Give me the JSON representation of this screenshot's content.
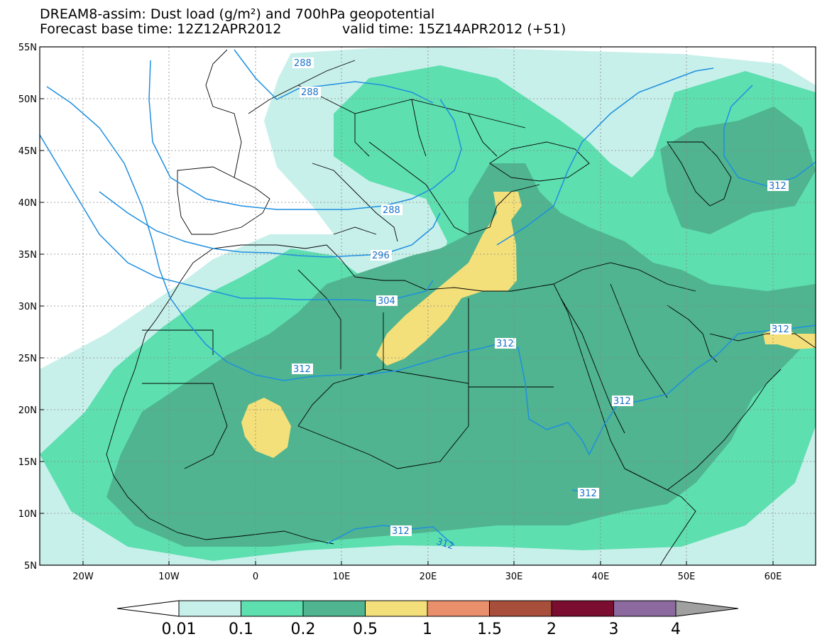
{
  "title": {
    "line1": "DREAM8-assim: Dust load (g/m²) and 700hPa geopotential",
    "line2_base": "Forecast base time: 12Z12APR2012",
    "line2_valid": "valid time: 15Z14APR2012 (+51)"
  },
  "axes": {
    "lat_labels": [
      "55N",
      "50N",
      "45N",
      "40N",
      "35N",
      "30N",
      "25N",
      "20N",
      "15N",
      "10N",
      "5N"
    ],
    "lon_labels": [
      "20W",
      "10W",
      "0",
      "10E",
      "20E",
      "30E",
      "40E",
      "50E",
      "60E"
    ]
  },
  "colors": {
    "c001": "#c8f0ea",
    "c01": "#5ddfb0",
    "c02": "#4fb48f",
    "c05": "#f4e07a",
    "c1": "#e98f6c",
    "c15": "#a84f3c",
    "c2": "#7a0d30",
    "c3": "#8c6aa0",
    "c4": "#a0a0a0",
    "isoline": "#1f8fe0",
    "isolabel": "#1a73c9"
  },
  "isolines": {
    "labels": [
      "288",
      "288",
      "288",
      "296",
      "304",
      "312",
      "312",
      "312",
      "312",
      "312",
      "312",
      "312"
    ]
  },
  "colorbar": {
    "labels": [
      "0.01",
      "0.1",
      "0.2",
      "0.5",
      "1",
      "1.5",
      "2",
      "3",
      "4"
    ]
  }
}
